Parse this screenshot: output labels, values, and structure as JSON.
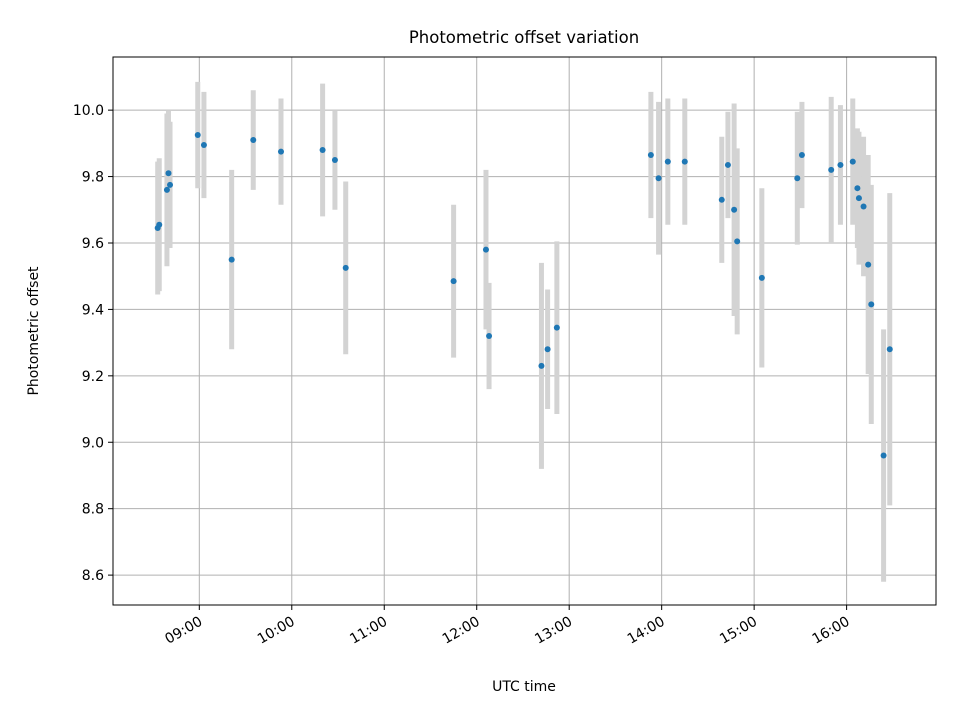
{
  "chart_data": {
    "type": "scatter",
    "title": "Photometric offset variation",
    "xlabel": "UTC time",
    "ylabel": "Photometric offset",
    "x_axis_type": "time",
    "xlim": [
      "08:04",
      "16:58"
    ],
    "ylim": [
      8.51,
      10.16
    ],
    "x_ticks": [
      "09:00",
      "10:00",
      "11:00",
      "12:00",
      "13:00",
      "14:00",
      "15:00",
      "16:00"
    ],
    "y_ticks": [
      8.6,
      8.8,
      9.0,
      9.2,
      9.4,
      9.6,
      9.8,
      10.0
    ],
    "y_tick_labels": [
      "8.6",
      "8.8",
      "9.0",
      "9.2",
      "9.4",
      "9.6",
      "9.8",
      "10.0"
    ],
    "grid": true,
    "legend": "none",
    "colors": {
      "marker": "#1f77b4",
      "errorbar": "#d3d3d3",
      "grid": "#b0b0b0"
    },
    "points": [
      {
        "x": "08:33",
        "y": 9.645,
        "yerr": 0.2
      },
      {
        "x": "08:34",
        "y": 9.655,
        "yerr": 0.2
      },
      {
        "x": "08:39",
        "y": 9.76,
        "yerr": 0.23
      },
      {
        "x": "08:40",
        "y": 9.81,
        "yerr": 0.19
      },
      {
        "x": "08:41",
        "y": 9.775,
        "yerr": 0.19
      },
      {
        "x": "08:59",
        "y": 9.925,
        "yerr": 0.16
      },
      {
        "x": "09:03",
        "y": 9.895,
        "yerr": 0.16
      },
      {
        "x": "09:21",
        "y": 9.55,
        "yerr": 0.27
      },
      {
        "x": "09:35",
        "y": 9.91,
        "yerr": 0.15
      },
      {
        "x": "09:53",
        "y": 9.875,
        "yerr": 0.16
      },
      {
        "x": "10:20",
        "y": 9.88,
        "yerr": 0.2
      },
      {
        "x": "10:28",
        "y": 9.85,
        "yerr": 0.15
      },
      {
        "x": "10:35",
        "y": 9.525,
        "yerr": 0.26
      },
      {
        "x": "11:45",
        "y": 9.485,
        "yerr": 0.23
      },
      {
        "x": "12:06",
        "y": 9.58,
        "yerr": 0.24
      },
      {
        "x": "12:08",
        "y": 9.32,
        "yerr": 0.16
      },
      {
        "x": "12:42",
        "y": 9.23,
        "yerr": 0.31
      },
      {
        "x": "12:46",
        "y": 9.28,
        "yerr": 0.18
      },
      {
        "x": "12:52",
        "y": 9.345,
        "yerr": 0.26
      },
      {
        "x": "13:53",
        "y": 9.865,
        "yerr": 0.19
      },
      {
        "x": "13:58",
        "y": 9.795,
        "yerr": 0.23
      },
      {
        "x": "14:04",
        "y": 9.845,
        "yerr": 0.19
      },
      {
        "x": "14:15",
        "y": 9.845,
        "yerr": 0.19
      },
      {
        "x": "14:39",
        "y": 9.73,
        "yerr": 0.19
      },
      {
        "x": "14:43",
        "y": 9.835,
        "yerr": 0.16
      },
      {
        "x": "14:47",
        "y": 9.7,
        "yerr": 0.32
      },
      {
        "x": "14:49",
        "y": 9.605,
        "yerr": 0.28
      },
      {
        "x": "15:05",
        "y": 9.495,
        "yerr": 0.27
      },
      {
        "x": "15:28",
        "y": 9.795,
        "yerr": 0.2
      },
      {
        "x": "15:31",
        "y": 9.865,
        "yerr": 0.16
      },
      {
        "x": "15:50",
        "y": 9.82,
        "yerr": 0.22
      },
      {
        "x": "15:56",
        "y": 9.835,
        "yerr": 0.18
      },
      {
        "x": "16:04",
        "y": 9.845,
        "yerr": 0.19
      },
      {
        "x": "16:07",
        "y": 9.765,
        "yerr": 0.18
      },
      {
        "x": "16:08",
        "y": 9.735,
        "yerr": 0.2
      },
      {
        "x": "16:11",
        "y": 9.71,
        "yerr": 0.21
      },
      {
        "x": "16:14",
        "y": 9.535,
        "yerr": 0.33
      },
      {
        "x": "16:16",
        "y": 9.415,
        "yerr": 0.36
      },
      {
        "x": "16:24",
        "y": 8.96,
        "yerr": 0.38
      },
      {
        "x": "16:28",
        "y": 9.28,
        "yerr": 0.47
      }
    ]
  }
}
